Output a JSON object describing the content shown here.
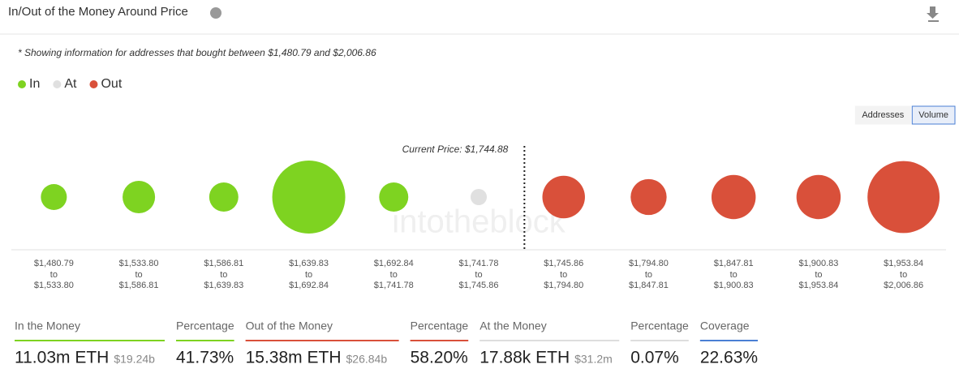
{
  "chart_data": {
    "type": "bubble",
    "title": "In/Out of the Money Around Price",
    "note": "* Showing information for addresses that bought between $1,480.79 and $2,006.86",
    "legend": [
      {
        "name": "In",
        "color": "#7ed321"
      },
      {
        "name": "At",
        "color": "#e0e0e0"
      },
      {
        "name": "Out",
        "color": "#d9503a"
      }
    ],
    "buttons": [
      "Addresses",
      "Volume"
    ],
    "active_button": 1,
    "current_price_label": "Current Price: $1,744.88",
    "current_price_after_index": 5,
    "watermark": "intotheblock",
    "range_joiner": "to",
    "ranges": [
      {
        "from": "$1,480.79",
        "to": "$1,533.80"
      },
      {
        "from": "$1,533.80",
        "to": "$1,586.81"
      },
      {
        "from": "$1,586.81",
        "to": "$1,639.83"
      },
      {
        "from": "$1,639.83",
        "to": "$1,692.84"
      },
      {
        "from": "$1,692.84",
        "to": "$1,741.78"
      },
      {
        "from": "$1,741.78",
        "to": "$1,745.86"
      },
      {
        "from": "$1,745.86",
        "to": "$1,794.80"
      },
      {
        "from": "$1,794.80",
        "to": "$1,847.81"
      },
      {
        "from": "$1,847.81",
        "to": "$1,900.83"
      },
      {
        "from": "$1,900.83",
        "to": "$1,953.84"
      },
      {
        "from": "$1,953.84",
        "to": "$2,006.86"
      }
    ],
    "values": [
      0.85,
      1.33,
      1.07,
      6.71,
      1.07,
      0.01788,
      2.28,
      1.63,
      2.46,
      2.46,
      6.54
    ],
    "value_groups": [
      0,
      0,
      0,
      0,
      0,
      1,
      2,
      2,
      2,
      2,
      2
    ],
    "stats": [
      {
        "label": "In the Money",
        "value": "11.03m ETH",
        "sub": "$19.24b",
        "color": "#7ed321"
      },
      {
        "label": "Percentage",
        "value": "41.73%",
        "color": "#7ed321"
      },
      {
        "label": "Out of the Money",
        "value": "15.38m ETH",
        "sub": "$26.84b",
        "color": "#d9503a"
      },
      {
        "label": "Percentage",
        "value": "58.20%",
        "color": "#d9503a"
      },
      {
        "label": "At the Money",
        "value": "17.88k ETH",
        "sub": "$31.2m",
        "color": "#dddddd"
      },
      {
        "label": "Percentage",
        "value": "0.07%",
        "color": "#dddddd"
      },
      {
        "label": "Coverage",
        "value": "22.63%",
        "color": "#4a7fd4"
      }
    ]
  }
}
